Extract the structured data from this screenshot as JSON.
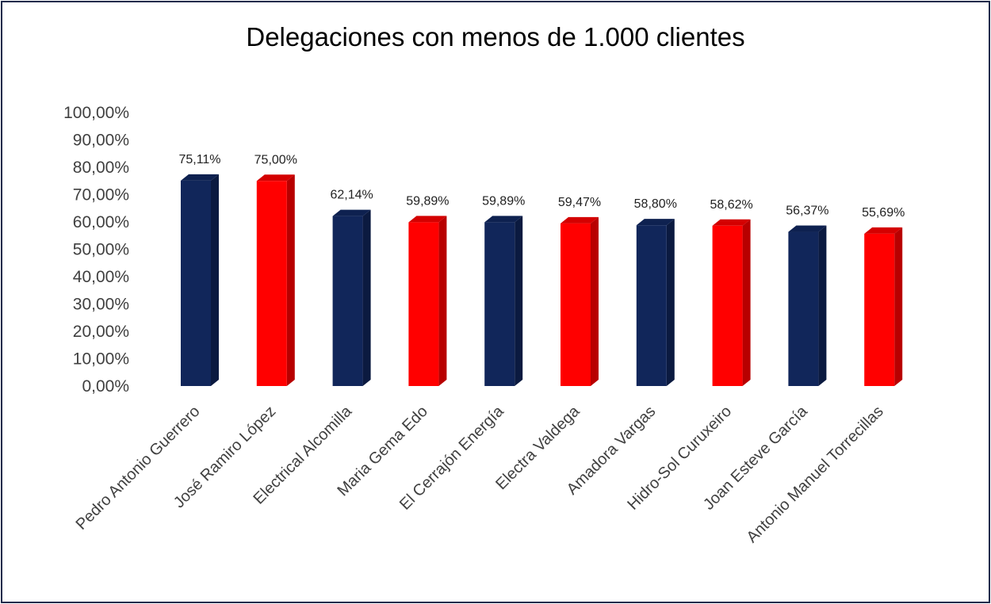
{
  "chart_data": {
    "type": "bar",
    "title": "Delegaciones con menos de  1.000 clientes",
    "xlabel": "",
    "ylabel": "",
    "ylim": [
      0,
      100
    ],
    "y_ticks": [
      "0,00%",
      "10,00%",
      "20,00%",
      "30,00%",
      "40,00%",
      "50,00%",
      "60,00%",
      "70,00%",
      "80,00%",
      "90,00%",
      "100,00%"
    ],
    "categories": [
      "Pedro Antonio Guerrero",
      "José Ramiro López",
      "Electrical Alcomilla",
      "Maria Gema Edo",
      "El Cerrajón Energía",
      "Electra Valdega",
      "Amadora Vargas",
      "Hidro-Sol Curuxeiro",
      "Joan Esteve García",
      "Antonio Manuel Torrecillas"
    ],
    "values": [
      75.11,
      75.0,
      62.14,
      59.89,
      59.89,
      59.47,
      58.8,
      58.62,
      56.37,
      55.69
    ],
    "value_labels": [
      "75,11%",
      "75,00%",
      "62,14%",
      "59,89%",
      "59,89%",
      "59,47%",
      "58,80%",
      "58,62%",
      "56,37%",
      "55,69%"
    ],
    "bar_colors": [
      "navy",
      "red",
      "navy",
      "red",
      "navy",
      "red",
      "navy",
      "red",
      "navy",
      "red"
    ],
    "grid": false,
    "legend": "none"
  },
  "colors": {
    "navy": {
      "front": "#11265a",
      "side": "#0b1a40",
      "top": "#0e2150"
    },
    "red": {
      "front": "#ff0000",
      "side": "#b80000",
      "top": "#d40000"
    },
    "frame": "#1f2a4a"
  }
}
